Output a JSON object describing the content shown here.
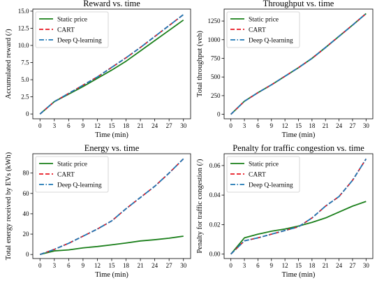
{
  "chart_data": [
    {
      "type": "line",
      "title": "Reward vs. time",
      "xlabel": "Time (min)",
      "ylabel": "Accumulated reward (/)",
      "x": [
        0,
        3,
        6,
        9,
        12,
        15,
        18,
        21,
        24,
        27,
        30
      ],
      "xticks": [
        0,
        3,
        6,
        9,
        12,
        15,
        18,
        21,
        24,
        27,
        30
      ],
      "yticks": [
        0,
        2.5,
        5.0,
        7.5,
        10.0,
        12.5,
        15.0
      ],
      "ytick_labels": [
        "0",
        "2.5",
        "5.0",
        "7.5",
        "10.0",
        "12.5",
        "15.0"
      ],
      "xlim": [
        -1.5,
        31.5
      ],
      "ylim": [
        -0.7,
        15.3
      ],
      "legend": "top-left",
      "grid": false,
      "series": [
        {
          "name": "Static price",
          "color": "#1a7f1a",
          "style": "solid",
          "values": [
            0,
            1.8,
            2.9,
            4.0,
            5.2,
            6.4,
            7.7,
            9.2,
            10.7,
            12.2,
            13.7
          ]
        },
        {
          "name": "CART",
          "color": "#e8141e",
          "style": "dashed",
          "values": [
            0,
            1.8,
            3.0,
            4.2,
            5.4,
            6.8,
            8.2,
            9.7,
            11.3,
            12.9,
            14.5
          ]
        },
        {
          "name": "Deep Q-learning",
          "color": "#1f77b4",
          "style": "dashdot",
          "values": [
            0,
            1.8,
            3.0,
            4.2,
            5.4,
            6.8,
            8.2,
            9.7,
            11.3,
            12.9,
            14.5
          ]
        }
      ]
    },
    {
      "type": "line",
      "title": "Throughput vs. time",
      "xlabel": "Time (min)",
      "ylabel": "Total throughput (veh)",
      "x": [
        0,
        3,
        6,
        9,
        12,
        15,
        18,
        21,
        24,
        27,
        30
      ],
      "xticks": [
        0,
        3,
        6,
        9,
        12,
        15,
        18,
        21,
        24,
        27,
        30
      ],
      "yticks": [
        0,
        250,
        500,
        750,
        1000,
        1250
      ],
      "ytick_labels": [
        "0",
        "250",
        "500",
        "750",
        "1000",
        "1250"
      ],
      "xlim": [
        -1.5,
        31.5
      ],
      "ylim": [
        -60,
        1410
      ],
      "legend": "top-left",
      "grid": false,
      "series": [
        {
          "name": "Static price",
          "color": "#1a7f1a",
          "style": "solid",
          "values": [
            0,
            175,
            290,
            395,
            510,
            625,
            750,
            895,
            1045,
            1195,
            1350
          ]
        },
        {
          "name": "CART",
          "color": "#e8141e",
          "style": "dashed",
          "values": [
            0,
            175,
            290,
            395,
            510,
            625,
            750,
            895,
            1045,
            1195,
            1350
          ]
        },
        {
          "name": "Deep Q-learning",
          "color": "#1f77b4",
          "style": "dashdot",
          "values": [
            0,
            175,
            290,
            395,
            510,
            625,
            750,
            895,
            1045,
            1195,
            1350
          ]
        }
      ]
    },
    {
      "type": "line",
      "title": "Energy vs. time",
      "xlabel": "Time (min)",
      "ylabel": "Total energy received by EVs (kWh)",
      "x": [
        0,
        3,
        6,
        9,
        12,
        15,
        18,
        21,
        24,
        27,
        30
      ],
      "xticks": [
        0,
        3,
        6,
        9,
        12,
        15,
        18,
        21,
        24,
        27,
        30
      ],
      "yticks": [
        0,
        20,
        40,
        60,
        80
      ],
      "ytick_labels": [
        "0",
        "20",
        "40",
        "60",
        "80"
      ],
      "xlim": [
        -1.5,
        31.5
      ],
      "ylim": [
        -4,
        99
      ],
      "legend": "top-left",
      "grid": false,
      "series": [
        {
          "name": "Static price",
          "color": "#1a7f1a",
          "style": "solid",
          "values": [
            0,
            3.5,
            4.5,
            6.5,
            7.8,
            9.5,
            11.3,
            13.3,
            14.5,
            16.0,
            18.0
          ]
        },
        {
          "name": "CART",
          "color": "#e8141e",
          "style": "dashed",
          "values": [
            0,
            5,
            11,
            18,
            25,
            33,
            45,
            56,
            67,
            80,
            94
          ]
        },
        {
          "name": "Deep Q-learning",
          "color": "#1f77b4",
          "style": "dashdot",
          "values": [
            0,
            5,
            11,
            18,
            25,
            33,
            45,
            56,
            67,
            80,
            94
          ]
        }
      ]
    },
    {
      "type": "line",
      "title": "Penalty for traffic congestion vs. time",
      "xlabel": "Time (min)",
      "ylabel": "Penalty for traffic congestion (/)",
      "x": [
        0,
        3,
        6,
        9,
        12,
        15,
        18,
        21,
        24,
        27,
        30
      ],
      "xticks": [
        0,
        3,
        6,
        9,
        12,
        15,
        18,
        21,
        24,
        27,
        30
      ],
      "yticks": [
        0.0,
        0.02,
        0.04,
        0.06
      ],
      "ytick_labels": [
        "0.00",
        "0.02",
        "0.04",
        "0.06"
      ],
      "xlim": [
        -1.5,
        31.5
      ],
      "ylim": [
        -0.003,
        0.068
      ],
      "legend": "top-left",
      "grid": false,
      "series": [
        {
          "name": "Static price",
          "color": "#1a7f1a",
          "style": "solid",
          "values": [
            0,
            0.011,
            0.0135,
            0.0155,
            0.017,
            0.019,
            0.0215,
            0.0245,
            0.0285,
            0.0325,
            0.0357
          ]
        },
        {
          "name": "CART",
          "color": "#e8141e",
          "style": "dashed",
          "values": [
            0,
            0.009,
            0.011,
            0.0135,
            0.016,
            0.0185,
            0.0245,
            0.0325,
            0.039,
            0.05,
            0.0645
          ]
        },
        {
          "name": "Deep Q-learning",
          "color": "#1f77b4",
          "style": "dashdot",
          "values": [
            0,
            0.009,
            0.011,
            0.0135,
            0.016,
            0.0185,
            0.0245,
            0.0325,
            0.039,
            0.05,
            0.0645
          ]
        }
      ]
    }
  ]
}
